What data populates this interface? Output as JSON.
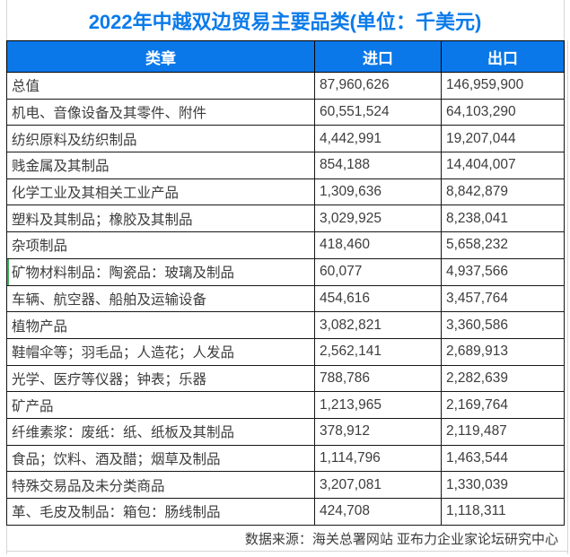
{
  "title": "2022年中越双边贸易主要品类(单位：千美元)",
  "table": {
    "columns": [
      "类章",
      "进口",
      "出口"
    ],
    "highlight_row_index": 7,
    "rows": [
      {
        "category": "总值",
        "import": "87,960,626",
        "export": "146,959,900"
      },
      {
        "category": "机电、音像设备及其零件、附件",
        "import": "60,551,524",
        "export": "64,103,290"
      },
      {
        "category": "纺织原料及纺织制品",
        "import": "4,442,991",
        "export": "19,207,044"
      },
      {
        "category": "贱金属及其制品",
        "import": "854,188",
        "export": "14,404,007"
      },
      {
        "category": "化学工业及其相关工业产品",
        "import": "1,309,636",
        "export": "8,842,879"
      },
      {
        "category": "塑料及其制品；橡胶及其制品",
        "import": "3,029,925",
        "export": "8,238,041"
      },
      {
        "category": "杂项制品",
        "import": "418,460",
        "export": "5,658,232"
      },
      {
        "category": "矿物材料制品：陶瓷品：玻璃及制品",
        "import": "60,077",
        "export": "4,937,566"
      },
      {
        "category": "车辆、航空器、船舶及运输设备",
        "import": "454,616",
        "export": "3,457,764"
      },
      {
        "category": "植物产品",
        "import": "3,082,821",
        "export": "3,360,586"
      },
      {
        "category": "鞋帽伞等；羽毛品；人造花；人发品",
        "import": "2,562,141",
        "export": "2,689,913"
      },
      {
        "category": "光学、医疗等仪器；钟表；乐器",
        "import": "788,786",
        "export": "2,282,639"
      },
      {
        "category": "矿产品",
        "import": "1,213,965",
        "export": "2,169,764"
      },
      {
        "category": "纤维素浆：废纸：纸、纸板及其制品",
        "import": "378,912",
        "export": "2,119,487"
      },
      {
        "category": "食品；饮料、酒及醋；烟草及制品",
        "import": "1,114,796",
        "export": "1,463,544"
      },
      {
        "category": "特殊交易品及未分类商品",
        "import": "3,207,081",
        "export": "1,330,039"
      },
      {
        "category": "革、毛皮及制品：箱包：肠线制品",
        "import": "424,708",
        "export": "1,118,311"
      }
    ]
  },
  "footer": {
    "source": "数据来源：海关总署网站 亚布力企业家论坛研究中心"
  },
  "colors": {
    "title_blue": "#0b7bea",
    "header_bg": "#0a78e8",
    "header_text": "#ffffff",
    "body_text": "#3c3c3c",
    "table_border": "#161616",
    "gridline": "#d6d6d6",
    "accent_green": "#3fae5a"
  },
  "chart_data": {
    "type": "table",
    "title": "2022年中越双边贸易主要品类(单位：千美元)",
    "columns": [
      "类章",
      "进口",
      "出口"
    ],
    "unit": "千美元",
    "categories": [
      "总值",
      "机电、音像设备及其零件、附件",
      "纺织原料及纺织制品",
      "贱金属及其制品",
      "化学工业及其相关工业产品",
      "塑料及其制品；橡胶及其制品",
      "杂项制品",
      "矿物材料制品：陶瓷品：玻璃及制品",
      "车辆、航空器、船舶及运输设备",
      "植物产品",
      "鞋帽伞等；羽毛品；人造花；人发品",
      "光学、医疗等仪器；钟表；乐器",
      "矿产品",
      "纤维素浆：废纸：纸、纸板及其制品",
      "食品；饮料、酒及醋；烟草及制品",
      "特殊交易品及未分类商品",
      "革、毛皮及制品：箱包：肠线制品"
    ],
    "series": [
      {
        "name": "进口",
        "values": [
          87960626,
          60551524,
          4442991,
          854188,
          1309636,
          3029925,
          418460,
          60077,
          454616,
          3082821,
          2562141,
          788786,
          1213965,
          378912,
          1114796,
          3207081,
          424708
        ]
      },
      {
        "name": "出口",
        "values": [
          146959900,
          64103290,
          19207044,
          14404007,
          8842879,
          8238041,
          5658232,
          4937566,
          3457764,
          3360586,
          2689913,
          2282639,
          2169764,
          2119487,
          1463544,
          1330039,
          1118311
        ]
      }
    ],
    "source_note": "数据来源：海关总署网站 亚布力企业家论坛研究中心"
  }
}
